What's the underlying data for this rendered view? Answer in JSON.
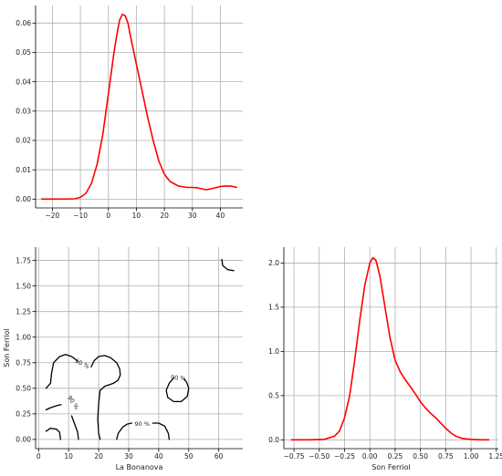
{
  "chart_data": [
    {
      "id": "top_kde",
      "type": "line",
      "title": "",
      "xlabel": "",
      "ylabel": "",
      "xlim": [
        -26,
        48
      ],
      "ylim": [
        -0.003,
        0.066
      ],
      "xticks": [
        -20,
        -10,
        0,
        10,
        20,
        30,
        40
      ],
      "xtick_labels": [
        "−20",
        "−10",
        "0",
        "10",
        "20",
        "30",
        "40"
      ],
      "yticks": [
        0.0,
        0.01,
        0.02,
        0.03,
        0.04,
        0.05,
        0.06
      ],
      "ytick_labels": [
        "0.00",
        "0.01",
        "0.02",
        "0.03",
        "0.04",
        "0.05",
        "0.06"
      ],
      "grid": true,
      "series_color": "#ff0000",
      "x": [
        -24,
        -20,
        -15,
        -12,
        -10,
        -8,
        -6,
        -4,
        -2,
        0,
        2,
        3,
        4,
        5,
        6,
        7,
        8,
        10,
        12,
        14,
        16,
        18,
        20,
        22,
        25,
        28,
        30,
        32,
        35,
        38,
        40,
        42,
        44,
        46
      ],
      "y": [
        0.0,
        0.0,
        0.0,
        0.0001,
        0.0006,
        0.002,
        0.0055,
        0.012,
        0.022,
        0.036,
        0.05,
        0.056,
        0.061,
        0.063,
        0.0625,
        0.06,
        0.055,
        0.046,
        0.037,
        0.028,
        0.02,
        0.013,
        0.0085,
        0.006,
        0.0045,
        0.004,
        0.004,
        0.0038,
        0.0032,
        0.0038,
        0.0043,
        0.0045,
        0.0044,
        0.004
      ]
    },
    {
      "id": "contour",
      "type": "line",
      "title": "",
      "xlabel": "La Bonanova",
      "ylabel": "Son Ferriol",
      "xlim": [
        -1,
        68
      ],
      "ylim": [
        -0.09,
        1.88
      ],
      "xticks": [
        0,
        10,
        20,
        30,
        40,
        50,
        60
      ],
      "xtick_labels": [
        "0",
        "10",
        "20",
        "30",
        "40",
        "50",
        "60"
      ],
      "yticks": [
        0.0,
        0.25,
        0.5,
        0.75,
        1.0,
        1.25,
        1.5,
        1.75
      ],
      "ytick_labels": [
        "0.00",
        "0.25",
        "0.50",
        "0.75",
        "1.00",
        "1.25",
        "1.50",
        "1.75"
      ],
      "grid": true,
      "series_color": "#000000",
      "contour_label_text": "90 %",
      "contours": [
        {
          "x": [
            2.5,
            4,
            4.3,
            5,
            7,
            9,
            11,
            12,
            13
          ],
          "y": [
            0.5,
            0.55,
            0.64,
            0.75,
            0.81,
            0.83,
            0.81,
            0.79,
            0.76
          ]
        },
        {
          "x": [
            2.5,
            4,
            6,
            7.5
          ],
          "y": [
            0.29,
            0.31,
            0.33,
            0.34
          ]
        },
        {
          "x": [
            2.5,
            4,
            6,
            7,
            7.3
          ],
          "y": [
            0.08,
            0.11,
            0.1,
            0.07,
            0.0
          ]
        },
        {
          "x": [
            11,
            12,
            13,
            13.3
          ],
          "y": [
            0.23,
            0.15,
            0.07,
            0.0
          ]
        },
        {
          "x": [
            17.5,
            18.5,
            20,
            22,
            24,
            26,
            27,
            27.2,
            26.5,
            25,
            22,
            20.5,
            20,
            19.7,
            20,
            20.5
          ],
          "y": [
            0.71,
            0.77,
            0.81,
            0.82,
            0.8,
            0.75,
            0.69,
            0.63,
            0.58,
            0.55,
            0.52,
            0.48,
            0.35,
            0.2,
            0.06,
            0.0
          ]
        },
        {
          "x": [
            26,
            26.5,
            28,
            29.5,
            31
          ],
          "y": [
            0.0,
            0.06,
            0.12,
            0.15,
            0.16
          ]
        },
        {
          "x": [
            38,
            40,
            42,
            43.2,
            43.5
          ],
          "y": [
            0.16,
            0.16,
            0.13,
            0.06,
            0.0
          ]
        },
        {
          "x": [
            45,
            43.5,
            42.5,
            43,
            45,
            47.5,
            49.5,
            50,
            49.3,
            48.5
          ],
          "y": [
            0.6,
            0.55,
            0.48,
            0.41,
            0.37,
            0.37,
            0.42,
            0.5,
            0.56,
            0.59
          ]
        },
        {
          "x": [
            61,
            61.3,
            63,
            65
          ],
          "y": [
            1.76,
            1.7,
            1.66,
            1.65
          ]
        }
      ],
      "labels_pos": [
        {
          "x": 14.5,
          "y": 0.74,
          "rot": 25
        },
        {
          "x": 11.5,
          "y": 0.36,
          "rot": 55
        },
        {
          "x": 34.5,
          "y": 0.15,
          "rot": 0
        },
        {
          "x": 46.5,
          "y": 0.6,
          "rot": 5
        }
      ]
    },
    {
      "id": "right_kde",
      "type": "line",
      "title": "",
      "xlabel": "Son Ferriol",
      "ylabel": "",
      "xlim": [
        -0.85,
        1.27
      ],
      "ylim": [
        -0.1,
        2.18
      ],
      "xticks": [
        -0.75,
        -0.5,
        -0.25,
        0.0,
        0.25,
        0.5,
        0.75,
        1.0,
        1.25
      ],
      "xtick_labels": [
        "−0.75",
        "−0.50",
        "−0.25",
        "0.00",
        "0.25",
        "0.50",
        "0.75",
        "1.00",
        "1.25"
      ],
      "yticks": [
        0.0,
        0.5,
        1.0,
        1.5,
        2.0
      ],
      "ytick_labels": [
        "0.0",
        "0.5",
        "1.0",
        "1.5",
        "2.0"
      ],
      "grid": true,
      "series_color": "#ff0000",
      "x": [
        -0.78,
        -0.6,
        -0.45,
        -0.35,
        -0.3,
        -0.25,
        -0.2,
        -0.15,
        -0.1,
        -0.05,
        0.0,
        0.03,
        0.06,
        0.1,
        0.15,
        0.2,
        0.25,
        0.3,
        0.35,
        0.4,
        0.45,
        0.5,
        0.55,
        0.6,
        0.65,
        0.7,
        0.75,
        0.8,
        0.85,
        0.9,
        0.95,
        1.0,
        1.1,
        1.18
      ],
      "y": [
        0.0,
        0.0,
        0.005,
        0.04,
        0.1,
        0.25,
        0.5,
        0.9,
        1.35,
        1.75,
        2.0,
        2.06,
        2.03,
        1.85,
        1.5,
        1.15,
        0.9,
        0.77,
        0.68,
        0.6,
        0.52,
        0.43,
        0.36,
        0.3,
        0.25,
        0.19,
        0.13,
        0.08,
        0.04,
        0.02,
        0.01,
        0.005,
        0.0,
        0.0
      ]
    }
  ]
}
